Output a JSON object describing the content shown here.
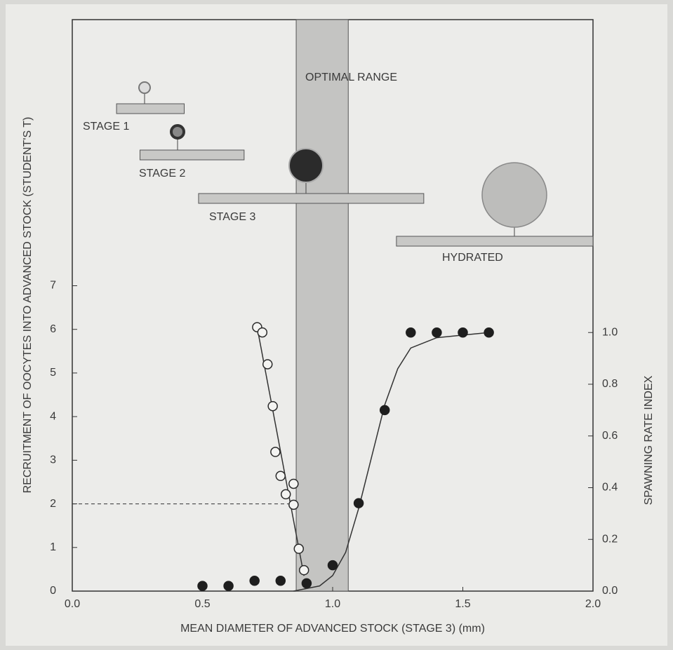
{
  "chart_data": {
    "type": "scatter",
    "xlabel": "MEAN DIAMETER OF ADVANCED STOCK (STAGE 3) (mm)",
    "ylabel": "RECRUITMENT OF OOCYTES INTO ADVANCED STOCK (STUDENT'S T)",
    "y2label": "SPAWNING RATE INDEX",
    "xlim": [
      0,
      2
    ],
    "ylim": [
      0,
      13.1
    ],
    "y2lim": [
      0,
      2.21
    ],
    "xticks": [
      {
        "value": 0,
        "label": "0.0"
      },
      0.5,
      {
        "value": 1,
        "label": "1.0"
      },
      1.5,
      {
        "value": 2,
        "label": "2.0"
      }
    ],
    "yticks": [
      0,
      1,
      2,
      3,
      4,
      5,
      6,
      7
    ],
    "y2ticks": [
      {
        "value": 0,
        "label": "0.0"
      },
      0.2,
      0.4,
      0.6,
      0.8,
      {
        "value": 1,
        "label": "1.0"
      }
    ],
    "series": [
      {
        "marker": "open",
        "color": "#2a2a2a",
        "axis": "y",
        "x": [
          0.71,
          0.73,
          0.75,
          0.77,
          0.78,
          0.8,
          0.82,
          0.85,
          0.85,
          0.87,
          0.89
        ],
        "values": [
          6.05,
          5.93,
          5.2,
          4.24,
          3.19,
          2.64,
          2.22,
          2.46,
          1.98,
          0.97,
          0.48
        ]
      },
      {
        "marker": "filled",
        "color": "#1e1e1e",
        "axis": "y2",
        "x": [
          0.5,
          0.6,
          0.7,
          0.8,
          0.9,
          1.0,
          1.1,
          1.2,
          1.3,
          1.4,
          1.5,
          1.6
        ],
        "values": [
          0.02,
          0.02,
          0.04,
          0.04,
          0.03,
          0.1,
          0.34,
          0.7,
          1,
          1,
          1,
          1
        ]
      }
    ],
    "fits": [
      {
        "axis": "y",
        "x": [
          0.71,
          0.89
        ],
        "values": [
          6.05,
          0.35
        ]
      },
      {
        "axis": "y2",
        "x": [
          0.85,
          0.95,
          1.0,
          1.05,
          1.1,
          1.15,
          1.2,
          1.25,
          1.3,
          1.4,
          1.5,
          1.6
        ],
        "values": [
          0,
          0.02,
          0.06,
          0.15,
          0.32,
          0.52,
          0.72,
          0.86,
          0.94,
          0.98,
          0.99,
          1
        ]
      }
    ],
    "reference_line": {
      "y": 2,
      "xlim": [
        0,
        0.85
      ]
    },
    "band": {
      "label": "OPTIMAL RANGE",
      "xlim": [
        0.86,
        1.06
      ]
    },
    "stages": [
      {
        "label": "STAGE 1",
        "xlim": [
          0.17,
          0.43
        ]
      },
      {
        "label": "STAGE 2",
        "xlim": [
          0.26,
          0.66
        ]
      },
      {
        "label": "STAGE 3",
        "xlim": [
          0.485,
          1.35
        ]
      },
      {
        "label": "HYDRATED",
        "xlim": [
          1.245,
          2.0
        ]
      }
    ]
  }
}
